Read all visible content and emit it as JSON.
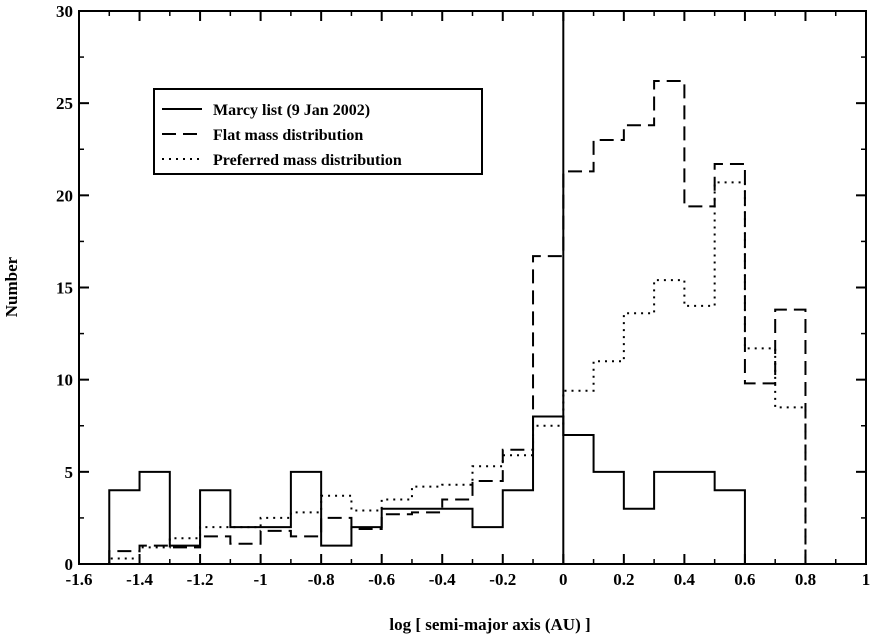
{
  "chart_data": {
    "type": "line",
    "step": true,
    "xlabel": "log [ semi-major axis (AU) ]",
    "ylabel": "Number",
    "xlim": [
      -1.6,
      1.0
    ],
    "ylim": [
      0,
      30
    ],
    "x_ticks": [
      "-1.6",
      "-1.4",
      "-1.2",
      "-1",
      "-0.8",
      "-0.6",
      "-0.4",
      "-0.2",
      "0",
      "0.2",
      "0.4",
      "0.6",
      "0.8",
      "1"
    ],
    "y_ticks": [
      "0",
      "5",
      "10",
      "15",
      "20",
      "25",
      "30"
    ],
    "reference_line_x": 0,
    "legend_position": "top-left",
    "bin_edges": [
      -1.5,
      -1.4,
      -1.3,
      -1.2,
      -1.1,
      -1.0,
      -0.9,
      -0.8,
      -0.7,
      -0.6,
      -0.5,
      -0.4,
      -0.3,
      -0.2,
      -0.1,
      0.0,
      0.1,
      0.2,
      0.3,
      0.4,
      0.5,
      0.6,
      0.7,
      0.8
    ],
    "series": [
      {
        "name": "Marcy list (9 Jan 2002)",
        "style": "solid",
        "values": [
          4,
          5,
          1,
          4,
          2,
          2,
          5,
          1,
          2,
          3,
          3,
          3,
          2,
          4,
          8,
          7,
          5,
          3,
          5,
          5,
          4,
          0,
          0
        ]
      },
      {
        "name": "Flat mass distribution",
        "style": "dashed",
        "values": [
          0.7,
          1.0,
          0.9,
          1.5,
          1.1,
          1.8,
          1.5,
          2.5,
          1.9,
          2.7,
          2.8,
          3.5,
          4.5,
          6.2,
          16.7,
          21.3,
          23.0,
          23.8,
          26.2,
          19.4,
          21.7,
          9.8,
          13.8
        ]
      },
      {
        "name": "Preferred mass distribution",
        "style": "dotted",
        "values": [
          0.3,
          0.9,
          1.4,
          2.0,
          2.0,
          2.5,
          2.8,
          3.7,
          2.9,
          3.5,
          4.2,
          4.3,
          5.3,
          5.9,
          7.5,
          9.4,
          11.0,
          13.6,
          15.4,
          14.0,
          20.7,
          11.7,
          8.5
        ]
      }
    ]
  }
}
